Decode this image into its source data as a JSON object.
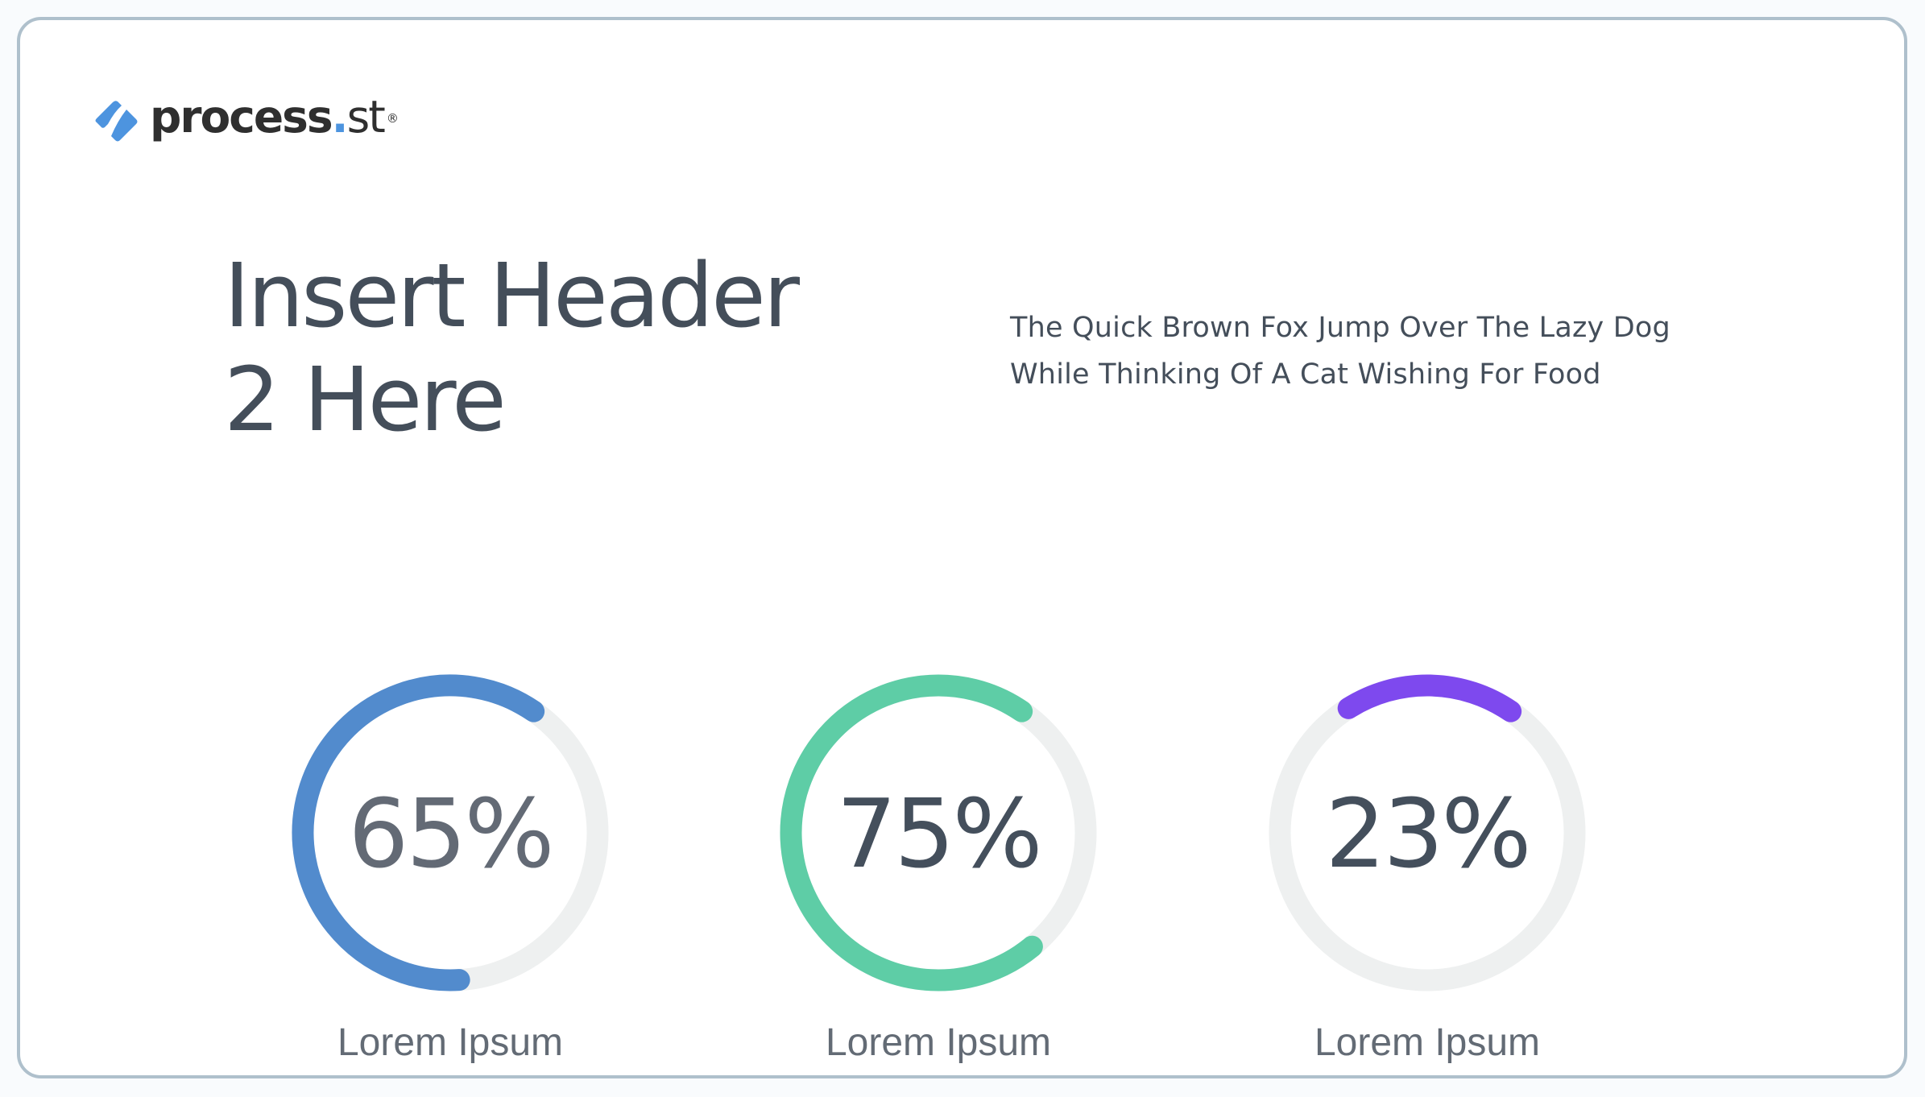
{
  "logo": {
    "brand_bold": "process",
    "brand_dot": ".",
    "brand_suffix": "st",
    "registered": "®",
    "icon": "process-st-diamond-icon",
    "icon_color": "#4d94df"
  },
  "header": {
    "line1": "Insert Header",
    "line2": "2 Here"
  },
  "body_text": "The Quick Brown Fox Jump Over The Lazy Dog While Thinking Of A Cat Wishing For Food",
  "colors": {
    "track": "#eef0f0",
    "card_border": "#afc0cc",
    "text": "#444e5a"
  },
  "gauges": [
    {
      "value_label": "65%",
      "label": "Lorem Ipsum",
      "percent": 65,
      "color": "#528bcd",
      "text_color": "#636a75"
    },
    {
      "value_label": "75%",
      "label": "Lorem Ipsum",
      "percent": 75,
      "color": "#5ecda6",
      "text_color": "#444f5c"
    },
    {
      "value_label": "23%",
      "label": "Lorem Ipsum",
      "percent": 23,
      "color": "#7e49ee",
      "text_color": "#444f5c"
    }
  ],
  "chart_data": {
    "type": "pie",
    "subtype": "radial-progress",
    "title": "Insert Header 2 Here",
    "categories": [
      "Lorem Ipsum",
      "Lorem Ipsum",
      "Lorem Ipsum"
    ],
    "values": [
      65,
      75,
      23
    ],
    "unit": "%",
    "max": 100,
    "colors": [
      "#528bcd",
      "#5ecda6",
      "#7e49ee"
    ],
    "legend": "none",
    "grid": false
  }
}
